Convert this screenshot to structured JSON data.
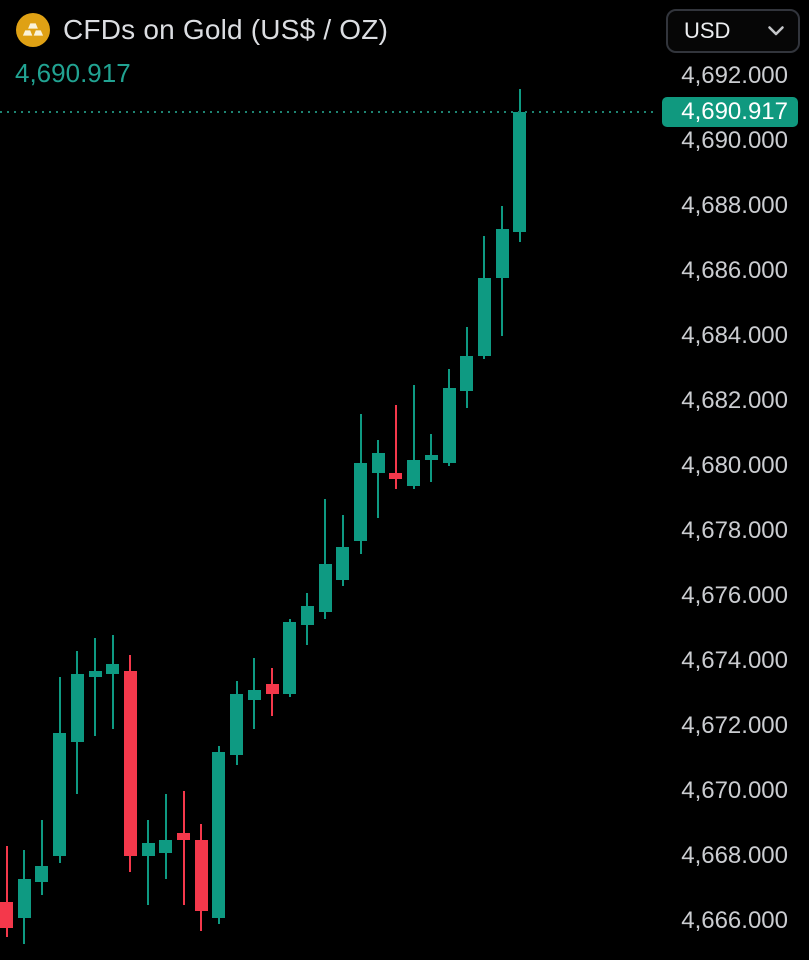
{
  "header": {
    "icon": "gold-bars-icon",
    "title": "CFDs on Gold (US$ / OZ)",
    "current_price": "4,690.917"
  },
  "currency_selector": {
    "value": "USD",
    "icon": "chevron-down-icon"
  },
  "price_scale": {
    "tick_labels": [
      "4,692.000",
      "4,690.000",
      "4,688.000",
      "4,686.000",
      "4,684.000",
      "4,682.000",
      "4,680.000",
      "4,678.000",
      "4,676.000",
      "4,674.000",
      "4,672.000",
      "4,670.000",
      "4,668.000",
      "4,666.000"
    ],
    "badge_text": "4,690.917",
    "badge_color": "#10997f",
    "text_color": "#cbcdd1"
  },
  "chart_data": {
    "type": "candlestick",
    "title": "CFDs on Gold (US$ / OZ)",
    "currency": "USD",
    "last_price": 4690.917,
    "ylim": [
      4664.8,
      4694.35
    ],
    "y_ticks": [
      4692,
      4690,
      4688,
      4686,
      4684,
      4682,
      4680,
      4678,
      4676,
      4674,
      4672,
      4670,
      4668,
      4666
    ],
    "grid": "off",
    "up_color": "#0e9a82",
    "down_color": "#f4384b",
    "last_price_line_color": "#1e8573",
    "candles": [
      {
        "o": 4666.6,
        "h": 4668.3,
        "l": 4665.5,
        "c": 4665.8
      },
      {
        "o": 4666.1,
        "h": 4668.2,
        "l": 4665.3,
        "c": 4667.3
      },
      {
        "o": 4667.2,
        "h": 4669.1,
        "l": 4666.8,
        "c": 4667.7
      },
      {
        "o": 4668.0,
        "h": 4673.5,
        "l": 4667.8,
        "c": 4671.8
      },
      {
        "o": 4671.5,
        "h": 4674.3,
        "l": 4669.9,
        "c": 4673.6
      },
      {
        "o": 4673.5,
        "h": 4674.7,
        "l": 4671.7,
        "c": 4673.7
      },
      {
        "o": 4673.6,
        "h": 4674.8,
        "l": 4671.9,
        "c": 4673.9
      },
      {
        "o": 4673.7,
        "h": 4674.2,
        "l": 4667.5,
        "c": 4668.0
      },
      {
        "o": 4668.0,
        "h": 4669.1,
        "l": 4666.5,
        "c": 4668.4
      },
      {
        "o": 4668.1,
        "h": 4669.9,
        "l": 4667.3,
        "c": 4668.5
      },
      {
        "o": 4668.7,
        "h": 4670.0,
        "l": 4666.5,
        "c": 4668.5
      },
      {
        "o": 4668.5,
        "h": 4669.0,
        "l": 4665.7,
        "c": 4666.3
      },
      {
        "o": 4666.1,
        "h": 4671.4,
        "l": 4665.9,
        "c": 4671.2
      },
      {
        "o": 4671.1,
        "h": 4673.4,
        "l": 4670.8,
        "c": 4673.0
      },
      {
        "o": 4672.8,
        "h": 4674.1,
        "l": 4671.9,
        "c": 4673.1
      },
      {
        "o": 4673.3,
        "h": 4673.8,
        "l": 4672.3,
        "c": 4673.0
      },
      {
        "o": 4673.0,
        "h": 4675.3,
        "l": 4672.9,
        "c": 4675.2
      },
      {
        "o": 4675.1,
        "h": 4676.1,
        "l": 4674.5,
        "c": 4675.7
      },
      {
        "o": 4675.5,
        "h": 4679.0,
        "l": 4675.3,
        "c": 4677.0
      },
      {
        "o": 4676.5,
        "h": 4678.5,
        "l": 4676.3,
        "c": 4677.5
      },
      {
        "o": 4677.7,
        "h": 4681.6,
        "l": 4677.3,
        "c": 4680.1
      },
      {
        "o": 4679.8,
        "h": 4680.8,
        "l": 4678.4,
        "c": 4680.4
      },
      {
        "o": 4679.8,
        "h": 4681.9,
        "l": 4679.3,
        "c": 4679.6
      },
      {
        "o": 4679.4,
        "h": 4682.5,
        "l": 4679.3,
        "c": 4680.2
      },
      {
        "o": 4680.2,
        "h": 4681.0,
        "l": 4679.5,
        "c": 4680.35
      },
      {
        "o": 4680.1,
        "h": 4683.0,
        "l": 4680.0,
        "c": 4682.4
      },
      {
        "o": 4682.3,
        "h": 4684.3,
        "l": 4681.8,
        "c": 4683.4
      },
      {
        "o": 4683.4,
        "h": 4687.1,
        "l": 4683.3,
        "c": 4685.8
      },
      {
        "o": 4685.8,
        "h": 4688.0,
        "l": 4684.0,
        "c": 4687.3
      },
      {
        "o": 4687.2,
        "h": 4691.6,
        "l": 4686.9,
        "c": 4690.917
      }
    ]
  }
}
